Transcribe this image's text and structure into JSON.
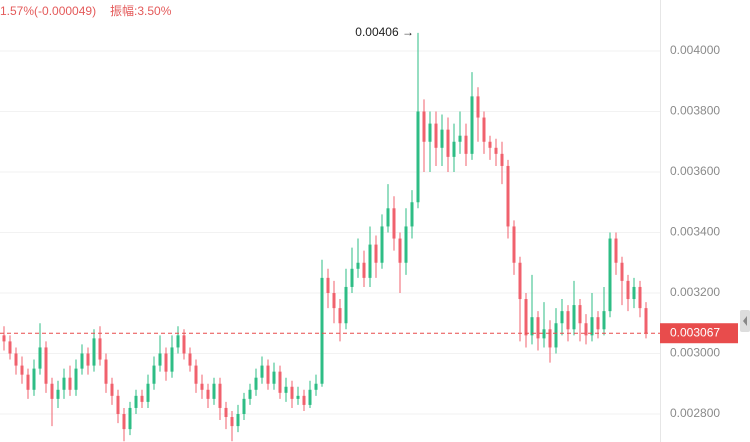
{
  "chart_data": {
    "type": "candlestick",
    "header_change": "1.57%(-0.000049)",
    "header_amplitude": "振幅:3.50%",
    "annotation": "0.00406 →",
    "last_price": 0.003067,
    "up_color": "#2ebd85",
    "down_color": "#f0616d",
    "ylim": [
      0.0027074,
      0.0041686
    ],
    "yticks": [
      {
        "value": 0.0028,
        "label": "0.002800"
      },
      {
        "value": 0.003,
        "label": "0.003000"
      },
      {
        "value": 0.0032,
        "label": "0.003200"
      },
      {
        "value": 0.0034,
        "label": "0.003400"
      },
      {
        "value": 0.0036,
        "label": "0.003600"
      },
      {
        "value": 0.0038,
        "label": "0.003800"
      },
      {
        "value": 0.004,
        "label": "0.004000"
      }
    ],
    "grid": true,
    "ohlc": [
      [
        0.00306,
        0.00309,
        0.00301,
        0.00304
      ],
      [
        0.00304,
        0.00306,
        0.00298,
        0.003
      ],
      [
        0.003,
        0.00302,
        0.00293,
        0.00296
      ],
      [
        0.00296,
        0.00299,
        0.0029,
        0.00293
      ],
      [
        0.00293,
        0.00295,
        0.00285,
        0.00288
      ],
      [
        0.00288,
        0.00298,
        0.00286,
        0.00295
      ],
      [
        0.00295,
        0.0031,
        0.00293,
        0.00302
      ],
      [
        0.00302,
        0.00304,
        0.00287,
        0.0029
      ],
      [
        0.0029,
        0.00292,
        0.00276,
        0.00285
      ],
      [
        0.00285,
        0.00291,
        0.00282,
        0.00288
      ],
      [
        0.00288,
        0.00295,
        0.00285,
        0.00292
      ],
      [
        0.00292,
        0.00296,
        0.00286,
        0.00288
      ],
      [
        0.00288,
        0.00298,
        0.00286,
        0.00295
      ],
      [
        0.00295,
        0.00303,
        0.00293,
        0.003
      ],
      [
        0.003,
        0.00302,
        0.00293,
        0.00296
      ],
      [
        0.00296,
        0.00308,
        0.00294,
        0.00305
      ],
      [
        0.00305,
        0.00309,
        0.00296,
        0.00298
      ],
      [
        0.00298,
        0.003,
        0.00287,
        0.0029
      ],
      [
        0.0029,
        0.00292,
        0.00283,
        0.00286
      ],
      [
        0.00286,
        0.00288,
        0.00277,
        0.0028
      ],
      [
        0.0028,
        0.00282,
        0.00271,
        0.00275
      ],
      [
        0.00275,
        0.00284,
        0.00273,
        0.00282
      ],
      [
        0.00282,
        0.00288,
        0.0028,
        0.00286
      ],
      [
        0.00286,
        0.00288,
        0.00282,
        0.00284
      ],
      [
        0.00284,
        0.00293,
        0.00282,
        0.0029
      ],
      [
        0.0029,
        0.00299,
        0.00288,
        0.00296
      ],
      [
        0.00296,
        0.00306,
        0.00294,
        0.003
      ],
      [
        0.003,
        0.00302,
        0.00291,
        0.00294
      ],
      [
        0.00294,
        0.00306,
        0.00292,
        0.00302
      ],
      [
        0.00302,
        0.00309,
        0.003,
        0.00306
      ],
      [
        0.00306,
        0.00308,
        0.00298,
        0.003
      ],
      [
        0.003,
        0.00302,
        0.00294,
        0.00296
      ],
      [
        0.00296,
        0.00298,
        0.00287,
        0.0029
      ],
      [
        0.0029,
        0.00293,
        0.00285,
        0.00288
      ],
      [
        0.00288,
        0.0029,
        0.00282,
        0.00285
      ],
      [
        0.00285,
        0.00292,
        0.00283,
        0.0029
      ],
      [
        0.0029,
        0.00292,
        0.00278,
        0.00282
      ],
      [
        0.00282,
        0.00284,
        0.00275,
        0.00279
      ],
      [
        0.00279,
        0.00281,
        0.00271,
        0.00276
      ],
      [
        0.00276,
        0.00283,
        0.00274,
        0.0028
      ],
      [
        0.0028,
        0.00287,
        0.00278,
        0.00285
      ],
      [
        0.00285,
        0.0029,
        0.00283,
        0.00288
      ],
      [
        0.00288,
        0.00295,
        0.00286,
        0.00292
      ],
      [
        0.00292,
        0.00299,
        0.0029,
        0.00296
      ],
      [
        0.00296,
        0.00298,
        0.00288,
        0.0029
      ],
      [
        0.0029,
        0.00297,
        0.00288,
        0.00294
      ],
      [
        0.00294,
        0.00296,
        0.00285,
        0.00287
      ],
      [
        0.00287,
        0.00292,
        0.00284,
        0.00289
      ],
      [
        0.00289,
        0.00291,
        0.00282,
        0.00285
      ],
      [
        0.00285,
        0.00289,
        0.00283,
        0.00286
      ],
      [
        0.00286,
        0.00288,
        0.00281,
        0.00283
      ],
      [
        0.00283,
        0.00291,
        0.00282,
        0.00288
      ],
      [
        0.00288,
        0.00293,
        0.00286,
        0.0029
      ],
      [
        0.0029,
        0.00331,
        0.00289,
        0.00325
      ],
      [
        0.00325,
        0.00328,
        0.00315,
        0.0032
      ],
      [
        0.0032,
        0.00324,
        0.0031,
        0.00315
      ],
      [
        0.00315,
        0.00318,
        0.00304,
        0.0031
      ],
      [
        0.0031,
        0.00328,
        0.00308,
        0.00322
      ],
      [
        0.00322,
        0.00335,
        0.0032,
        0.00328
      ],
      [
        0.00328,
        0.00338,
        0.00325,
        0.0033
      ],
      [
        0.0033,
        0.00334,
        0.00322,
        0.00325
      ],
      [
        0.00325,
        0.00342,
        0.00322,
        0.00336
      ],
      [
        0.00336,
        0.00339,
        0.00325,
        0.0033
      ],
      [
        0.0033,
        0.00346,
        0.00328,
        0.00342
      ],
      [
        0.00342,
        0.00356,
        0.0034,
        0.00348
      ],
      [
        0.00348,
        0.00352,
        0.00334,
        0.00338
      ],
      [
        0.00338,
        0.0034,
        0.0032,
        0.0033
      ],
      [
        0.0033,
        0.00348,
        0.00326,
        0.00342
      ],
      [
        0.00342,
        0.00354,
        0.00338,
        0.0035
      ],
      [
        0.0035,
        0.00406,
        0.00348,
        0.0038
      ],
      [
        0.0038,
        0.00384,
        0.0036,
        0.0037
      ],
      [
        0.0037,
        0.0038,
        0.0036,
        0.00376
      ],
      [
        0.00376,
        0.0038,
        0.00362,
        0.00368
      ],
      [
        0.00368,
        0.00379,
        0.00362,
        0.00374
      ],
      [
        0.00374,
        0.00378,
        0.0036,
        0.00365
      ],
      [
        0.00365,
        0.00376,
        0.0036,
        0.0037
      ],
      [
        0.0037,
        0.0038,
        0.00366,
        0.00372
      ],
      [
        0.00372,
        0.00376,
        0.00362,
        0.00366
      ],
      [
        0.00366,
        0.00393,
        0.00364,
        0.00385
      ],
      [
        0.00385,
        0.00388,
        0.0037,
        0.00378
      ],
      [
        0.00378,
        0.0038,
        0.00366,
        0.0037
      ],
      [
        0.0037,
        0.00372,
        0.00364,
        0.00368
      ],
      [
        0.00368,
        0.00371,
        0.00362,
        0.00366
      ],
      [
        0.00366,
        0.0037,
        0.00356,
        0.00362
      ],
      [
        0.00362,
        0.00364,
        0.00338,
        0.00342
      ],
      [
        0.00342,
        0.00344,
        0.00326,
        0.0033
      ],
      [
        0.0033,
        0.00332,
        0.00304,
        0.00318
      ],
      [
        0.00318,
        0.0032,
        0.00302,
        0.00306
      ],
      [
        0.00306,
        0.00326,
        0.00303,
        0.00312
      ],
      [
        0.00312,
        0.00314,
        0.00301,
        0.00305
      ],
      [
        0.00305,
        0.00317,
        0.00302,
        0.00308
      ],
      [
        0.00308,
        0.00311,
        0.00297,
        0.00302
      ],
      [
        0.00302,
        0.00315,
        0.003,
        0.0031
      ],
      [
        0.0031,
        0.00318,
        0.00306,
        0.00314
      ],
      [
        0.00314,
        0.00316,
        0.00304,
        0.00308
      ],
      [
        0.00308,
        0.00324,
        0.00306,
        0.00316
      ],
      [
        0.00316,
        0.00318,
        0.00304,
        0.0031
      ],
      [
        0.0031,
        0.00313,
        0.00303,
        0.00306
      ],
      [
        0.00306,
        0.0032,
        0.00304,
        0.00312
      ],
      [
        0.00312,
        0.00314,
        0.00305,
        0.00308
      ],
      [
        0.00308,
        0.00322,
        0.00306,
        0.00314
      ],
      [
        0.00314,
        0.0034,
        0.00312,
        0.00338
      ],
      [
        0.00338,
        0.0034,
        0.00326,
        0.0033
      ],
      [
        0.0033,
        0.00332,
        0.00316,
        0.00324
      ],
      [
        0.00324,
        0.00326,
        0.00314,
        0.00318
      ],
      [
        0.00318,
        0.00325,
        0.00315,
        0.00322
      ],
      [
        0.00322,
        0.00324,
        0.00312,
        0.00315
      ],
      [
        0.00315,
        0.00317,
        0.00305,
        0.003067
      ]
    ]
  }
}
